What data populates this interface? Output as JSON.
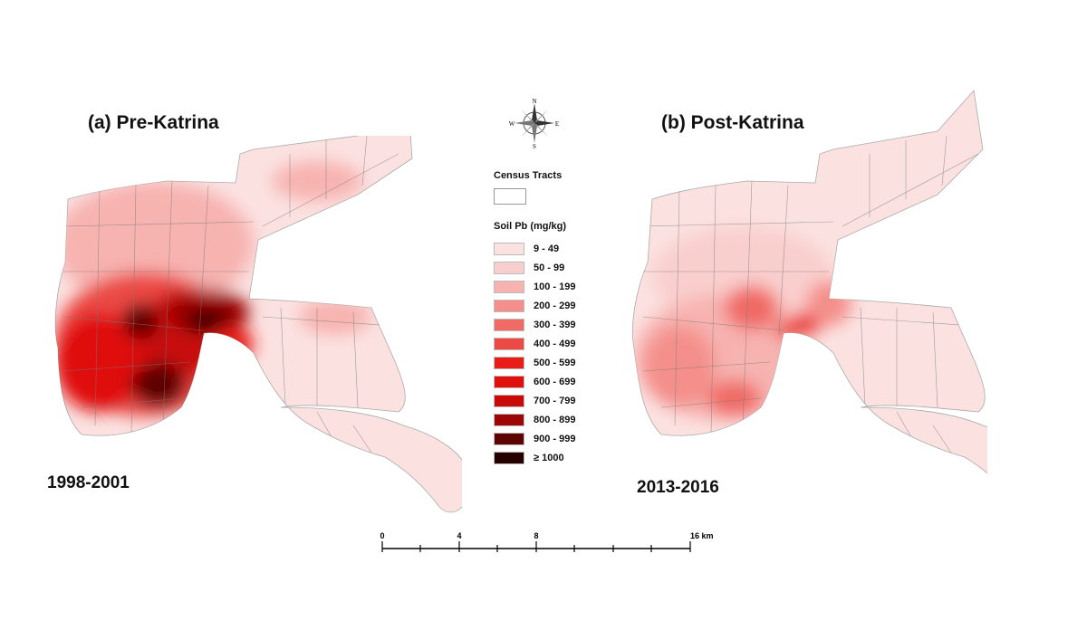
{
  "panels": [
    {
      "title": "(a) Pre-Katrina",
      "period": "1998-2001"
    },
    {
      "title": "(b) Post-Katrina",
      "period": "2013-2016"
    }
  ],
  "compass": {
    "n": "N",
    "s": "S",
    "e": "E",
    "w": "W"
  },
  "legend": {
    "tracts_title": "Census Tracts",
    "pb_title": "Soil Pb (mg/kg)",
    "classes": [
      {
        "label": "9 - 49",
        "color": "#fbe2e1"
      },
      {
        "label": "50 - 99",
        "color": "#f9cfcd"
      },
      {
        "label": "100 - 199",
        "color": "#f7b3b0"
      },
      {
        "label": "200 - 299",
        "color": "#f48f8b"
      },
      {
        "label": "300 - 399",
        "color": "#f06b66"
      },
      {
        "label": "400 - 499",
        "color": "#ec4a44"
      },
      {
        "label": "500 - 599",
        "color": "#e81c17"
      },
      {
        "label": "600 - 699",
        "color": "#e0100c"
      },
      {
        "label": "700 - 799",
        "color": "#c80a08"
      },
      {
        "label": "800 - 899",
        "color": "#9c0604"
      },
      {
        "label": "900 - 999",
        "color": "#5e0503"
      },
      {
        "label": "≥ 1000",
        "color": "#260000"
      }
    ]
  },
  "scale_bar": {
    "ticks": [
      "0",
      "4",
      "8",
      "16 km"
    ]
  }
}
